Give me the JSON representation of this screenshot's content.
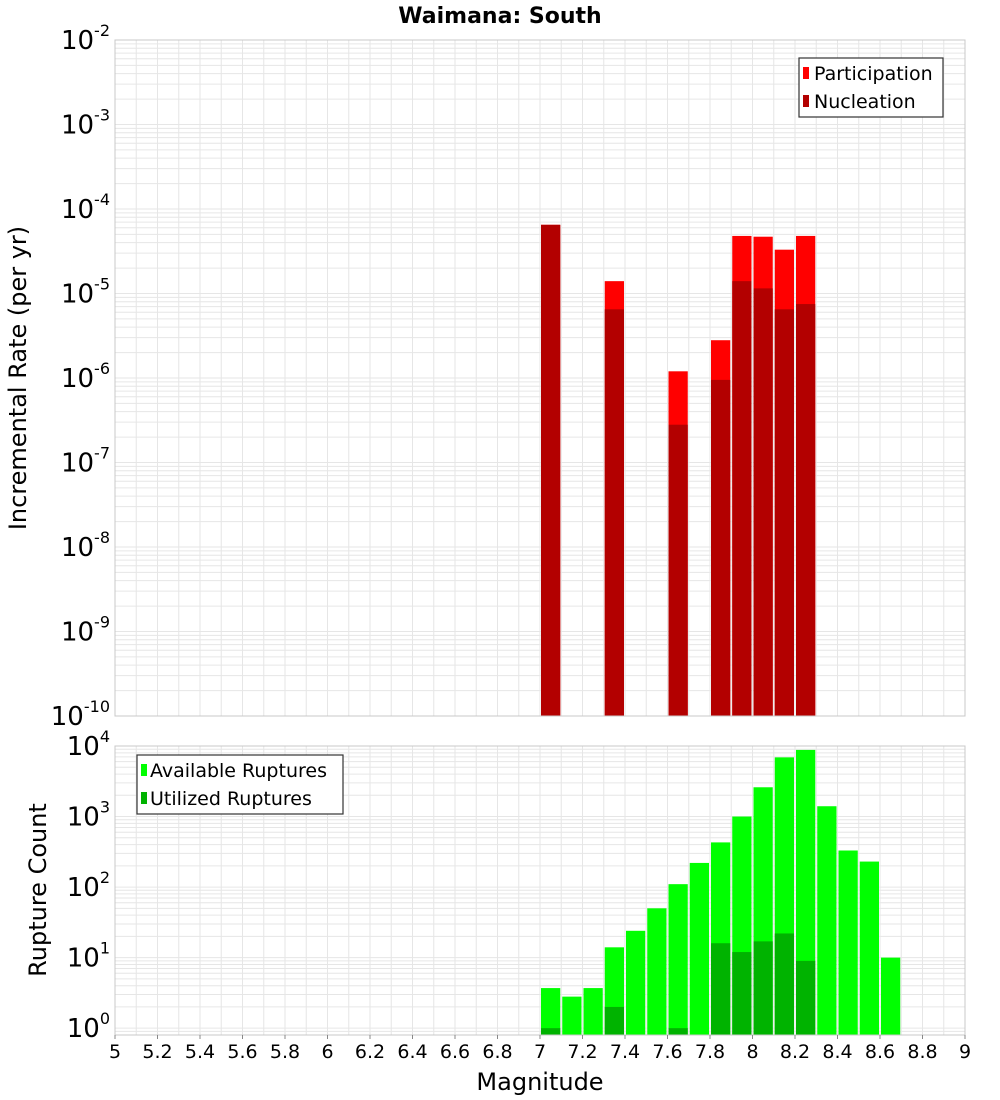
{
  "title": "Waimana: South",
  "xlabel": "Magnitude",
  "x_ticks": [
    "5",
    "5.2",
    "5.4",
    "5.6",
    "5.8",
    "6",
    "6.2",
    "6.4",
    "6.6",
    "6.8",
    "7",
    "7.2",
    "7.4",
    "7.6",
    "7.8",
    "8",
    "8.2",
    "8.4",
    "8.6",
    "8.8",
    "9"
  ],
  "colors": {
    "participation": "#ff0000",
    "nucleation": "#b30000",
    "available": "#00ff00",
    "utilized": "#00b300",
    "grid": "#e6e6e6",
    "frame": "#c8c8c8"
  },
  "chart_data": [
    {
      "type": "bar",
      "panel": "top",
      "title": "Waimana: South",
      "xlabel": "Magnitude",
      "ylabel": "Incremental Rate (per yr)",
      "yscale": "log",
      "xlim": [
        5,
        9
      ],
      "ylim": [
        1e-10,
        0.01
      ],
      "y_tick_exponents": [
        "-2",
        "-3",
        "-4",
        "-5",
        "-6",
        "-7",
        "-8",
        "-9",
        "-10"
      ],
      "bin_width": 0.1,
      "legend": [
        "Participation",
        "Nucleation"
      ],
      "legend_position": "top-right",
      "grid": true,
      "series": [
        {
          "name": "Participation",
          "x": [
            7.05,
            7.35,
            7.65,
            7.85,
            7.95,
            8.05,
            8.15,
            8.25
          ],
          "values": [
            6.5e-05,
            1.4e-05,
            1.2e-06,
            2.8e-06,
            4.8e-05,
            4.7e-05,
            3.3e-05,
            4.8e-05
          ]
        },
        {
          "name": "Nucleation",
          "x": [
            7.05,
            7.35,
            7.65,
            7.85,
            7.95,
            8.05,
            8.15,
            8.25
          ],
          "values": [
            6.5e-05,
            6.5e-06,
            2.8e-07,
            9.5e-07,
            1.4e-05,
            1.15e-05,
            6.5e-06,
            7.5e-06
          ]
        }
      ]
    },
    {
      "type": "bar",
      "panel": "bottom",
      "xlabel": "Magnitude",
      "ylabel": "Rupture Count",
      "yscale": "log",
      "xlim": [
        5,
        9
      ],
      "ylim": [
        0.8,
        10000
      ],
      "y_tick_exponents": [
        "4",
        "3",
        "2",
        "1",
        "0"
      ],
      "bin_width": 0.1,
      "legend": [
        "Available Ruptures",
        "Utilized Ruptures"
      ],
      "legend_position": "top-left",
      "grid": true,
      "series": [
        {
          "name": "Available Ruptures",
          "x": [
            7.05,
            7.15,
            7.25,
            7.35,
            7.45,
            7.55,
            7.65,
            7.75,
            7.85,
            7.95,
            8.05,
            8.15,
            8.25,
            8.35,
            8.45,
            8.55,
            8.65
          ],
          "values": [
            3.7,
            2.8,
            3.7,
            14,
            24,
            50,
            110,
            220,
            430,
            1000,
            2600,
            6900,
            8800,
            1400,
            330,
            230,
            10
          ]
        },
        {
          "name": "Utilized Ruptures",
          "x": [
            7.05,
            7.35,
            7.65,
            7.85,
            7.95,
            8.05,
            8.15,
            8.25
          ],
          "values": [
            1,
            2,
            1,
            16,
            12,
            17,
            22,
            9
          ]
        }
      ]
    }
  ]
}
